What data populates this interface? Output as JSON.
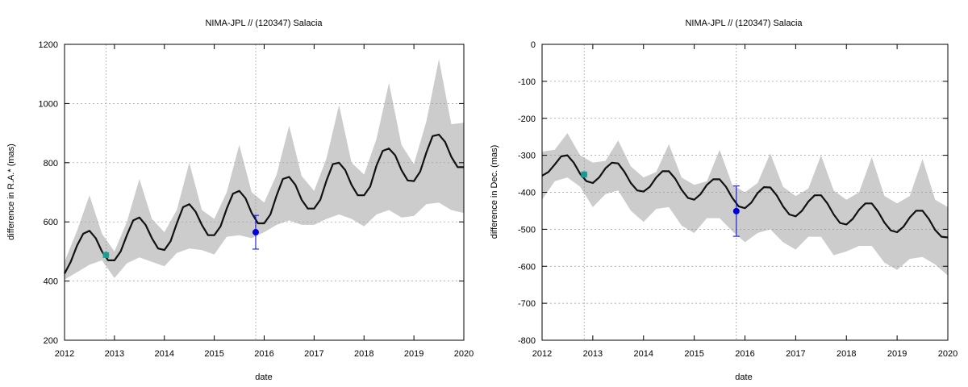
{
  "chart_data": [
    {
      "type": "line",
      "title": "NIMA-JPL // (120347) Salacia",
      "xlabel": "date",
      "ylabel": "difference in R.A.* (mas)",
      "xlim": [
        2012,
        2020
      ],
      "ylim": [
        200,
        1200
      ],
      "x_ticks": [
        "2012",
        "2013",
        "2014",
        "2015",
        "2016",
        "2017",
        "2018",
        "2019",
        "2020"
      ],
      "y_ticks": [
        "200",
        "400",
        "600",
        "800",
        "1000",
        "1200"
      ],
      "grid": "dashed horizontal and vertical",
      "vertical_markers": [
        2012.83,
        2015.83
      ],
      "series": [
        {
          "role": "uncertainty band",
          "color": "#cccccc",
          "x": [
            2012.0,
            2012.25,
            2012.5,
            2012.75,
            2013.0,
            2013.25,
            2013.5,
            2013.75,
            2014.0,
            2014.25,
            2014.5,
            2014.75,
            2015.0,
            2015.25,
            2015.5,
            2015.75,
            2016.0,
            2016.25,
            2016.5,
            2016.75,
            2017.0,
            2017.25,
            2017.5,
            2017.75,
            2018.0,
            2018.25,
            2018.5,
            2018.75,
            2019.0,
            2019.25,
            2019.5,
            2019.75,
            2020.0
          ],
          "upper": [
            465,
            570,
            690,
            560,
            500,
            600,
            745,
            610,
            565,
            640,
            800,
            640,
            610,
            700,
            860,
            700,
            665,
            760,
            925,
            755,
            705,
            815,
            995,
            800,
            760,
            880,
            1070,
            860,
            795,
            940,
            1150,
            930,
            935
          ],
          "lower": [
            405,
            430,
            455,
            470,
            410,
            460,
            480,
            465,
            450,
            495,
            510,
            505,
            490,
            550,
            555,
            545,
            565,
            590,
            605,
            590,
            590,
            610,
            625,
            610,
            585,
            625,
            640,
            615,
            620,
            660,
            665,
            640,
            630
          ]
        },
        {
          "role": "ephemeris difference",
          "color": "#111111",
          "x": [
            2012.0,
            2012.125,
            2012.25,
            2012.375,
            2012.5,
            2012.625,
            2012.75,
            2012.875,
            2013.0,
            2013.125,
            2013.25,
            2013.375,
            2013.5,
            2013.625,
            2013.75,
            2013.875,
            2014.0,
            2014.125,
            2014.25,
            2014.375,
            2014.5,
            2014.625,
            2014.75,
            2014.875,
            2015.0,
            2015.125,
            2015.25,
            2015.375,
            2015.5,
            2015.625,
            2015.75,
            2015.875,
            2016.0,
            2016.125,
            2016.25,
            2016.375,
            2016.5,
            2016.625,
            2016.75,
            2016.875,
            2017.0,
            2017.125,
            2017.25,
            2017.375,
            2017.5,
            2017.625,
            2017.75,
            2017.875,
            2018.0,
            2018.125,
            2018.25,
            2018.375,
            2018.5,
            2018.625,
            2018.75,
            2018.875,
            2019.0,
            2019.125,
            2019.25,
            2019.375,
            2019.5,
            2019.625,
            2019.75,
            2019.875,
            2020.0
          ],
          "y": [
            425,
            465,
            520,
            560,
            570,
            545,
            500,
            470,
            470,
            500,
            555,
            605,
            615,
            590,
            545,
            510,
            505,
            535,
            595,
            650,
            660,
            635,
            590,
            555,
            555,
            585,
            645,
            695,
            705,
            680,
            630,
            595,
            595,
            625,
            690,
            745,
            752,
            725,
            675,
            645,
            645,
            675,
            740,
            795,
            800,
            775,
            725,
            690,
            690,
            720,
            790,
            840,
            848,
            825,
            775,
            740,
            738,
            770,
            835,
            890,
            895,
            870,
            820,
            785,
            785
          ]
        },
        {
          "role": "observation",
          "color": "#1a9a90",
          "points": [
            {
              "x": 2012.83,
              "y": 488,
              "err": 8
            }
          ]
        },
        {
          "role": "observation",
          "color": "#0000dd",
          "points": [
            {
              "x": 2015.83,
              "y": 565,
              "err": 57
            }
          ]
        }
      ]
    },
    {
      "type": "line",
      "title": "NIMA-JPL // (120347) Salacia",
      "xlabel": "date",
      "ylabel": "difference in Dec. (mas)",
      "xlim": [
        2012,
        2020
      ],
      "ylim": [
        -800,
        0
      ],
      "x_ticks": [
        "2012",
        "2013",
        "2014",
        "2015",
        "2016",
        "2017",
        "2018",
        "2019",
        "2020"
      ],
      "y_ticks": [
        "-800",
        "-700",
        "-600",
        "-500",
        "-400",
        "-300",
        "-200",
        "-100",
        "0"
      ],
      "grid": "dashed horizontal and vertical",
      "vertical_markers": [
        2012.83,
        2015.83
      ],
      "series": [
        {
          "role": "uncertainty band",
          "color": "#cccccc",
          "x": [
            2012.0,
            2012.25,
            2012.5,
            2012.75,
            2013.0,
            2013.25,
            2013.5,
            2013.75,
            2014.0,
            2014.25,
            2014.5,
            2014.75,
            2015.0,
            2015.25,
            2015.5,
            2015.75,
            2016.0,
            2016.25,
            2016.5,
            2016.75,
            2017.0,
            2017.25,
            2017.5,
            2017.75,
            2018.0,
            2018.25,
            2018.5,
            2018.75,
            2019.0,
            2019.25,
            2019.5,
            2019.75,
            2020.0
          ],
          "upper": [
            -290,
            -285,
            -240,
            -300,
            -320,
            -315,
            -260,
            -330,
            -360,
            -345,
            -270,
            -360,
            -380,
            -370,
            -285,
            -380,
            -400,
            -375,
            -295,
            -385,
            -410,
            -390,
            -300,
            -395,
            -420,
            -400,
            -305,
            -410,
            -430,
            -410,
            -310,
            -420,
            -440
          ],
          "lower": [
            -420,
            -370,
            -360,
            -385,
            -440,
            -405,
            -395,
            -450,
            -480,
            -445,
            -440,
            -490,
            -510,
            -470,
            -470,
            -505,
            -535,
            -510,
            -500,
            -535,
            -555,
            -520,
            -520,
            -570,
            -560,
            -545,
            -545,
            -590,
            -610,
            -580,
            -575,
            -595,
            -625
          ]
        },
        {
          "role": "ephemeris difference",
          "color": "#111111",
          "x": [
            2012.0,
            2012.125,
            2012.25,
            2012.375,
            2012.5,
            2012.625,
            2012.75,
            2012.875,
            2013.0,
            2013.125,
            2013.25,
            2013.375,
            2013.5,
            2013.625,
            2013.75,
            2013.875,
            2014.0,
            2014.125,
            2014.25,
            2014.375,
            2014.5,
            2014.625,
            2014.75,
            2014.875,
            2015.0,
            2015.125,
            2015.25,
            2015.375,
            2015.5,
            2015.625,
            2015.75,
            2015.875,
            2016.0,
            2016.125,
            2016.25,
            2016.375,
            2016.5,
            2016.625,
            2016.75,
            2016.875,
            2017.0,
            2017.125,
            2017.25,
            2017.375,
            2017.5,
            2017.625,
            2017.75,
            2017.875,
            2018.0,
            2018.125,
            2018.25,
            2018.375,
            2018.5,
            2018.625,
            2018.75,
            2018.875,
            2019.0,
            2019.125,
            2019.25,
            2019.375,
            2019.5,
            2019.625,
            2019.75,
            2019.875,
            2020.0
          ],
          "y": [
            -355,
            -345,
            -325,
            -303,
            -300,
            -320,
            -350,
            -370,
            -375,
            -360,
            -335,
            -320,
            -322,
            -345,
            -375,
            -395,
            -398,
            -385,
            -360,
            -343,
            -343,
            -363,
            -393,
            -415,
            -420,
            -405,
            -380,
            -365,
            -365,
            -385,
            -415,
            -438,
            -443,
            -428,
            -402,
            -386,
            -387,
            -408,
            -438,
            -460,
            -465,
            -450,
            -425,
            -408,
            -408,
            -430,
            -460,
            -483,
            -487,
            -472,
            -447,
            -430,
            -430,
            -452,
            -482,
            -503,
            -508,
            -493,
            -468,
            -450,
            -450,
            -472,
            -502,
            -520,
            -522
          ]
        },
        {
          "role": "observation",
          "color": "#1a9a90",
          "points": [
            {
              "x": 2012.83,
              "y": -352,
              "err": 7
            }
          ]
        },
        {
          "role": "observation",
          "color": "#0000dd",
          "points": [
            {
              "x": 2015.83,
              "y": -451,
              "err": 68
            }
          ]
        }
      ]
    }
  ]
}
